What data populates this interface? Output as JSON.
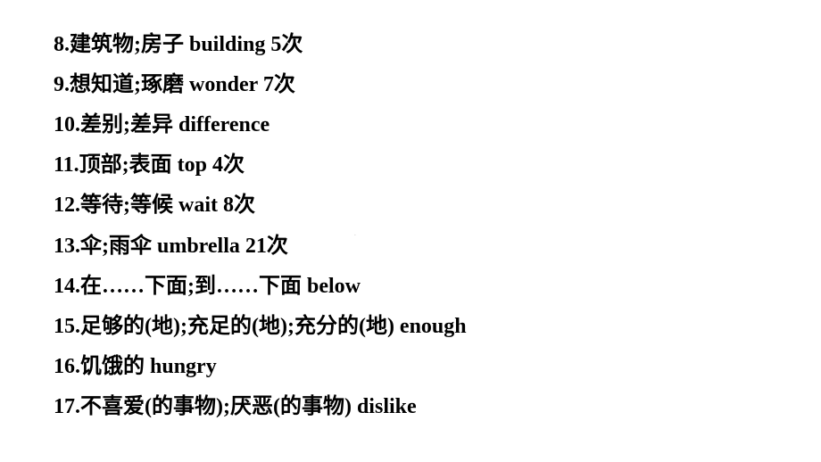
{
  "lines": [
    {
      "num": "8",
      "zh": "建筑物;房子",
      "en": "building",
      "times": "5次"
    },
    {
      "num": "9",
      "zh": "想知道;琢磨",
      "en": "wonder",
      "times": "7次"
    },
    {
      "num": "10",
      "zh": "差别;差异",
      "en": "difference",
      "times": ""
    },
    {
      "num": "11",
      "zh": "顶部;表面",
      "en": "top",
      "times": "4次"
    },
    {
      "num": "12",
      "zh": "等待;等候",
      "en": "wait",
      "times": "8次"
    },
    {
      "num": "13",
      "zh": "伞;雨伞",
      "en": "umbrella",
      "times": "21次"
    },
    {
      "num": "14",
      "zh": "在……下面;到……下面",
      "en": "below",
      "times": ""
    },
    {
      "num": "15",
      "zh": "足够的(地);充足的(地);充分的(地)",
      "en": "enough",
      "times": ""
    },
    {
      "num": "16",
      "zh": "饥饿的",
      "en": "hungry",
      "times": ""
    },
    {
      "num": "17",
      "zh": "不喜爱(的事物);厌恶(的事物)",
      "en": "dislike",
      "times": ""
    }
  ],
  "watermark": "·"
}
